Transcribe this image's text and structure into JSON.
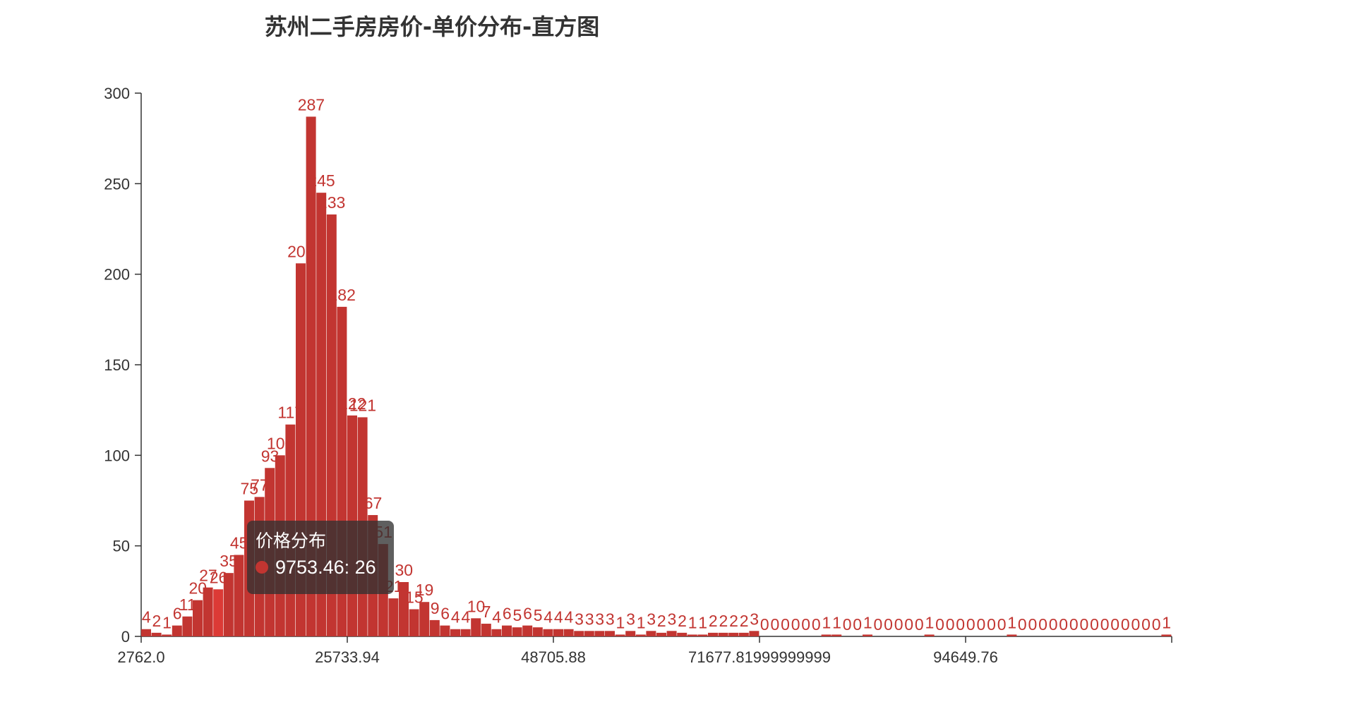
{
  "chart_data": {
    "type": "bar",
    "title": "苏州二手房房价-单价分布-直方图",
    "series_name": "价格分布",
    "color": "#c23531",
    "highlight_color": "#dc3a36",
    "bin_start": 2762.0,
    "bin_width": 1148.597,
    "ylim": [
      0,
      300
    ],
    "yticks": [
      "0",
      "50",
      "100",
      "150",
      "200",
      "250",
      "300"
    ],
    "xticks": [
      {
        "value": 2762.0,
        "label": "2762.0"
      },
      {
        "value": 25733.94,
        "label": "25733.94"
      },
      {
        "value": 48705.88,
        "label": "48705.88"
      },
      {
        "value": 71677.82,
        "label": "71677.81999999999"
      },
      {
        "value": 94649.76,
        "label": "94649.76"
      }
    ],
    "values": [
      4,
      2,
      1,
      6,
      11,
      20,
      27,
      26,
      35,
      45,
      75,
      77,
      93,
      100,
      117,
      206,
      287,
      245,
      233,
      182,
      122,
      121,
      67,
      51,
      21,
      30,
      15,
      19,
      9,
      6,
      4,
      4,
      10,
      7,
      4,
      6,
      5,
      6,
      5,
      4,
      4,
      4,
      3,
      3,
      3,
      3,
      1,
      3,
      1,
      3,
      2,
      3,
      2,
      1,
      1,
      2,
      2,
      2,
      2,
      3,
      0,
      0,
      0,
      0,
      0,
      0,
      1,
      1,
      0,
      0,
      1,
      0,
      0,
      0,
      0,
      0,
      1,
      0,
      0,
      0,
      0,
      0,
      0,
      0,
      1,
      0,
      0,
      0,
      0,
      0,
      0,
      0,
      0,
      0,
      0,
      0,
      0,
      0,
      0,
      1
    ],
    "highlight_index": 7,
    "tooltip": {
      "title": "价格分布",
      "label": "9753.46: 26"
    }
  }
}
